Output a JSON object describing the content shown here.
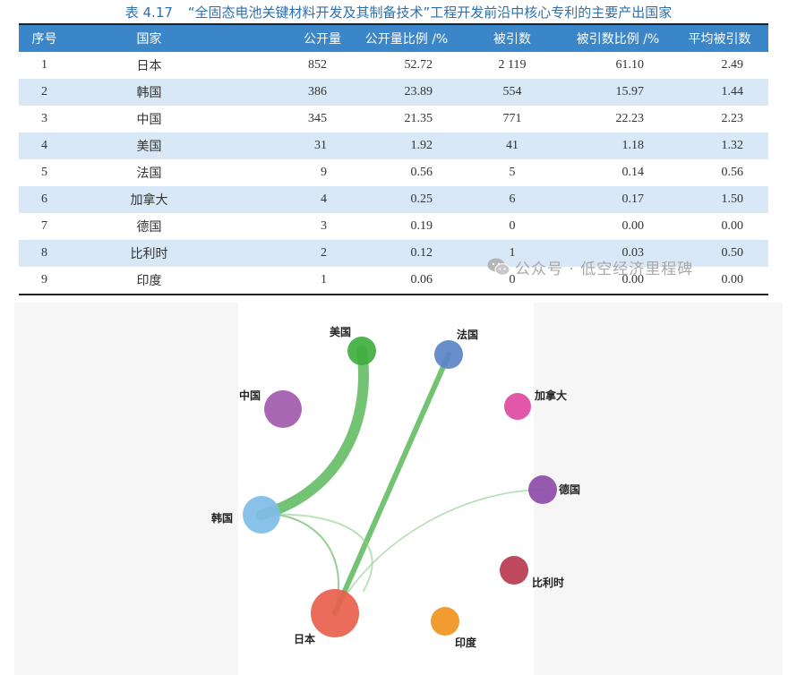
{
  "caption": {
    "number": "表 4.17",
    "title": "“全固态电池关键材料开发及其制备技术”工程开发前沿中核心专利的主要产出国家"
  },
  "table": {
    "headers": [
      "序号",
      "国家",
      "公开量",
      "公开量比例 /%",
      "被引数",
      "被引数比例 /%",
      "平均被引数"
    ],
    "rows": [
      [
        "1",
        "日本",
        "852",
        "52.72",
        "2 119",
        "61.10",
        "2.49"
      ],
      [
        "2",
        "韩国",
        "386",
        "23.89",
        "554",
        "15.97",
        "1.44"
      ],
      [
        "3",
        "中国",
        "345",
        "21.35",
        "771",
        "22.23",
        "2.23"
      ],
      [
        "4",
        "美国",
        "31",
        "1.92",
        "41",
        "1.18",
        "1.32"
      ],
      [
        "5",
        "法国",
        "9",
        "0.56",
        "5",
        "0.14",
        "0.56"
      ],
      [
        "6",
        "加拿大",
        "4",
        "0.25",
        "6",
        "0.17",
        "1.50"
      ],
      [
        "7",
        "德国",
        "3",
        "0.19",
        "0",
        "0.00",
        "0.00"
      ],
      [
        "8",
        "比利时",
        "2",
        "0.12",
        "1",
        "0.03",
        "0.50"
      ],
      [
        "9",
        "印度",
        "1",
        "0.06",
        "0",
        "0.00",
        "0.00"
      ]
    ]
  },
  "watermark": {
    "icon": "wechat-icon",
    "text": "公众号 · 低空经济里程碑"
  },
  "network": {
    "nodes": [
      {
        "id": "japan",
        "label": "日本",
        "color": "#e8604c"
      },
      {
        "id": "korea",
        "label": "韩国",
        "color": "#7fbde6"
      },
      {
        "id": "china",
        "label": "中国",
        "color": "#a25aad"
      },
      {
        "id": "usa",
        "label": "美国",
        "color": "#3fae3f"
      },
      {
        "id": "france",
        "label": "法国",
        "color": "#5b84c8"
      },
      {
        "id": "canada",
        "label": "加拿大",
        "color": "#e04aa2"
      },
      {
        "id": "germany",
        "label": "德国",
        "color": "#8e4aa8"
      },
      {
        "id": "belgium",
        "label": "比利时",
        "color": "#b8384e"
      },
      {
        "id": "india",
        "label": "印度",
        "color": "#f0921e"
      }
    ],
    "edges": [
      {
        "from": "korea",
        "to": "usa"
      },
      {
        "from": "japan",
        "to": "france"
      },
      {
        "from": "japan",
        "to": "korea"
      },
      {
        "from": "japan",
        "to": "germany"
      },
      {
        "from": "korea",
        "to": "germany"
      }
    ]
  }
}
